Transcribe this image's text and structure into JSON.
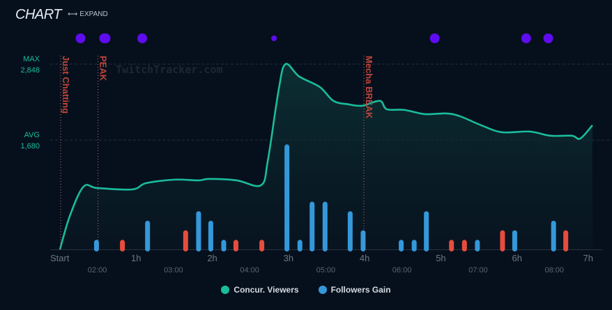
{
  "header": {
    "title": "CHART",
    "expand_label": "EXPAND",
    "expand_icon": "left-right-arrow-icon"
  },
  "colors": {
    "viewers": "#1bbc9b",
    "followers_gain": "#3498db",
    "followers_loss": "#e74c3c",
    "events": "#5f0cf0",
    "annotation": "#c0453a",
    "reference": "#1bbc9b"
  },
  "watermark": "TwitchTracker.com",
  "chart_data": {
    "type": "line+bar",
    "title": "CHART",
    "x_unit": "hours since start",
    "xlim": [
      0,
      7
    ],
    "ylim_viewers": [
      0,
      2848
    ],
    "x_ticks": [
      {
        "x": 0,
        "label": "Start"
      },
      {
        "x": 1,
        "label": "1h"
      },
      {
        "x": 2,
        "label": "2h"
      },
      {
        "x": 3,
        "label": "3h"
      },
      {
        "x": 4,
        "label": "4h"
      },
      {
        "x": 5,
        "label": "5h"
      },
      {
        "x": 6,
        "label": "6h"
      },
      {
        "x": 7,
        "label": "7h"
      }
    ],
    "time_ticks": [
      {
        "x": 0.49,
        "label": "02:00"
      },
      {
        "x": 1.49,
        "label": "03:00"
      },
      {
        "x": 2.49,
        "label": "04:00"
      },
      {
        "x": 3.49,
        "label": "05:00"
      },
      {
        "x": 4.49,
        "label": "06:00"
      },
      {
        "x": 5.49,
        "label": "07:00"
      },
      {
        "x": 6.49,
        "label": "08:00"
      }
    ],
    "reference_lines": [
      {
        "name": "MAX",
        "value": 2848,
        "value_label": "2,848"
      },
      {
        "name": "AVG",
        "value": 1680,
        "value_label": "1,680"
      }
    ],
    "annotations": [
      {
        "x": 0.0,
        "label": "Just Chatting"
      },
      {
        "x": 0.49,
        "label": "PEAK"
      },
      {
        "x": 3.98,
        "label": "Mecha BREAK"
      }
    ],
    "event_markers": [
      {
        "x": 0.27,
        "size": 7
      },
      {
        "x": 0.59,
        "size": 8
      },
      {
        "x": 1.08,
        "size": 7
      },
      {
        "x": 2.81,
        "size": 4
      },
      {
        "x": 4.92,
        "size": 7
      },
      {
        "x": 6.12,
        "size": 7
      },
      {
        "x": 6.41,
        "size": 7
      }
    ],
    "series": [
      {
        "name": "Concur. Viewers",
        "type": "line",
        "x": [
          0,
          0.13,
          0.31,
          0.49,
          0.95,
          1.13,
          1.5,
          1.82,
          1.96,
          2.32,
          2.64,
          2.73,
          2.87,
          2.96,
          3.14,
          3.41,
          3.59,
          3.79,
          3.97,
          4.2,
          4.29,
          4.52,
          4.79,
          5.07,
          5.25,
          5.53,
          5.8,
          6.17,
          6.44,
          6.72,
          6.83,
          6.99
        ],
        "values": [
          0,
          515,
          965,
          943,
          922,
          1018,
          1072,
          1061,
          1083,
          1061,
          986,
          1372,
          2444,
          2848,
          2658,
          2497,
          2283,
          2229,
          2208,
          2283,
          2154,
          2144,
          2079,
          2090,
          2047,
          1908,
          1801,
          1811,
          1747,
          1747,
          1704,
          1908
        ]
      },
      {
        "name": "Followers Gain",
        "type": "bar",
        "x": [
          0.48,
          0.82,
          1.15,
          1.65,
          1.82,
          1.98,
          2.15,
          2.31,
          2.65,
          2.98,
          3.15,
          3.31,
          3.48,
          3.81,
          3.98,
          4.48,
          4.65,
          4.81,
          5.14,
          5.31,
          5.48,
          5.81,
          5.97,
          6.48,
          6.64
        ],
        "values": [
          1,
          -1,
          3,
          -2,
          4,
          3,
          1,
          -1,
          -1,
          11,
          1,
          5,
          5,
          4,
          2,
          1,
          1,
          4,
          -1,
          -1,
          1,
          -2,
          2,
          3,
          -2
        ]
      }
    ],
    "legend": [
      {
        "label": "Concur. Viewers"
      },
      {
        "label": "Followers Gain"
      }
    ],
    "legend_position": "bottom",
    "grid": false
  }
}
